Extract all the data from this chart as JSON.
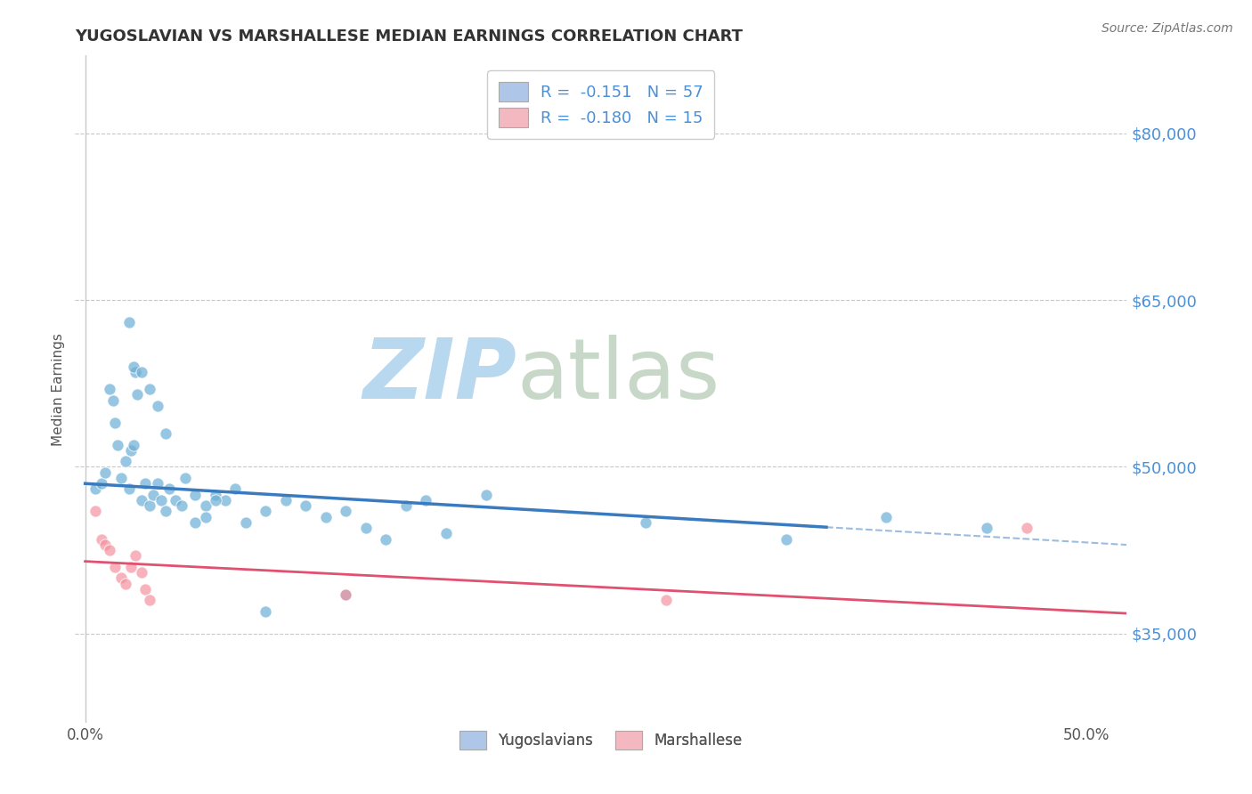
{
  "title": "YUGOSLAVIAN VS MARSHALLESE MEDIAN EARNINGS CORRELATION CHART",
  "source": "Source: ZipAtlas.com",
  "ylabel": "Median Earnings",
  "yticks": [
    35000,
    50000,
    65000,
    80000
  ],
  "ytick_labels": [
    "$35,000",
    "$50,000",
    "$65,000",
    "$80,000"
  ],
  "ylim": [
    27000,
    87000
  ],
  "xlim": [
    -0.005,
    0.52
  ],
  "legend_entries": [
    {
      "label": "R =  -0.151   N = 57",
      "color": "#aec6e8"
    },
    {
      "label": "R =  -0.180   N = 15",
      "color": "#f4b8c1"
    }
  ],
  "bottom_legend": [
    {
      "label": "Yugoslavians",
      "color": "#aec6e8"
    },
    {
      "label": "Marshallese",
      "color": "#f4b8c1"
    }
  ],
  "yugo_scatter_x": [
    0.005,
    0.008,
    0.01,
    0.012,
    0.014,
    0.015,
    0.016,
    0.018,
    0.02,
    0.022,
    0.023,
    0.024,
    0.025,
    0.026,
    0.028,
    0.03,
    0.032,
    0.034,
    0.036,
    0.038,
    0.04,
    0.042,
    0.045,
    0.048,
    0.05,
    0.055,
    0.06,
    0.065,
    0.07,
    0.075,
    0.08,
    0.09,
    0.1,
    0.11,
    0.12,
    0.13,
    0.14,
    0.15,
    0.16,
    0.17,
    0.022,
    0.024,
    0.028,
    0.032,
    0.036,
    0.04,
    0.055,
    0.06,
    0.065,
    0.18,
    0.2,
    0.28,
    0.35,
    0.4,
    0.45,
    0.13,
    0.09
  ],
  "yugo_scatter_y": [
    48000,
    48500,
    49500,
    57000,
    56000,
    54000,
    52000,
    49000,
    50500,
    48000,
    51500,
    52000,
    58500,
    56500,
    47000,
    48500,
    46500,
    47500,
    48500,
    47000,
    46000,
    48000,
    47000,
    46500,
    49000,
    47500,
    46500,
    47500,
    47000,
    48000,
    45000,
    46000,
    47000,
    46500,
    45500,
    46000,
    44500,
    43500,
    46500,
    47000,
    63000,
    59000,
    58500,
    57000,
    55500,
    53000,
    45000,
    45500,
    47000,
    44000,
    47500,
    45000,
    43500,
    45500,
    44500,
    38500,
    37000
  ],
  "marsh_scatter_x": [
    0.005,
    0.008,
    0.01,
    0.012,
    0.015,
    0.018,
    0.02,
    0.023,
    0.025,
    0.028,
    0.03,
    0.032,
    0.13,
    0.29,
    0.47
  ],
  "marsh_scatter_y": [
    46000,
    43500,
    43000,
    42500,
    41000,
    40000,
    39500,
    41000,
    42000,
    40500,
    39000,
    38000,
    38500,
    38000,
    44500
  ],
  "title_color": "#333333",
  "source_color": "#777777",
  "scatter_yugo_color": "#6aaed6",
  "scatter_marsh_color": "#f4929e",
  "trend_yugo_color": "#3a7abf",
  "trend_marsh_color": "#e05070",
  "grid_color": "#c8c8c8",
  "ytick_color": "#4a90d9",
  "watermark_zip": "ZIP",
  "watermark_atlas": "atlas",
  "watermark_color_zip": "#b8d8f0",
  "watermark_color_atlas": "#c8d8c8"
}
